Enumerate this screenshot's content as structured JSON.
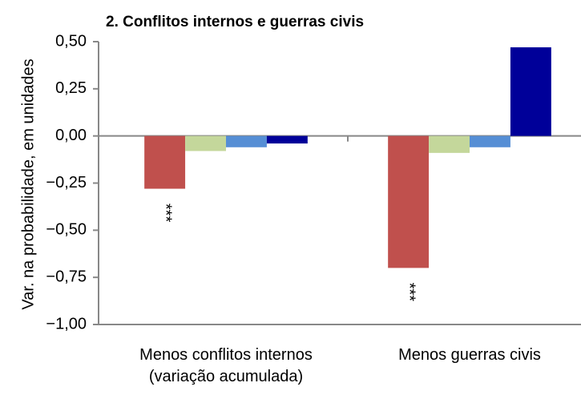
{
  "chart_data": {
    "type": "bar",
    "title": "2. Conflitos internos e guerras civis",
    "y_label": "Var. na probabilidade, em unidades",
    "categories": [
      "Menos conflitos internos\n(variação acumulada)",
      "Menos guerras civis"
    ],
    "series": [
      {
        "color": "#c0504d",
        "values": [
          -0.28,
          -0.7
        ],
        "annotations": [
          "***",
          "***"
        ]
      },
      {
        "color": "#c4d79b",
        "values": [
          -0.08,
          -0.09
        ]
      },
      {
        "color": "#558ed5",
        "values": [
          -0.06,
          -0.06
        ]
      },
      {
        "color": "#000099",
        "values": [
          -0.04,
          0.47
        ]
      }
    ],
    "ylim": [
      -1,
      0.5
    ],
    "yticks": [
      {
        "value": 0.5,
        "label": "0,50"
      },
      {
        "value": 0.25,
        "label": "0,25"
      },
      {
        "value": 0,
        "label": "0,00"
      },
      {
        "value": -0.25,
        "label": "−0,25"
      },
      {
        "value": -0.5,
        "label": "−0,50"
      },
      {
        "value": -0.75,
        "label": "−0,75"
      },
      {
        "value": -1,
        "label": "−1,00"
      }
    ]
  }
}
